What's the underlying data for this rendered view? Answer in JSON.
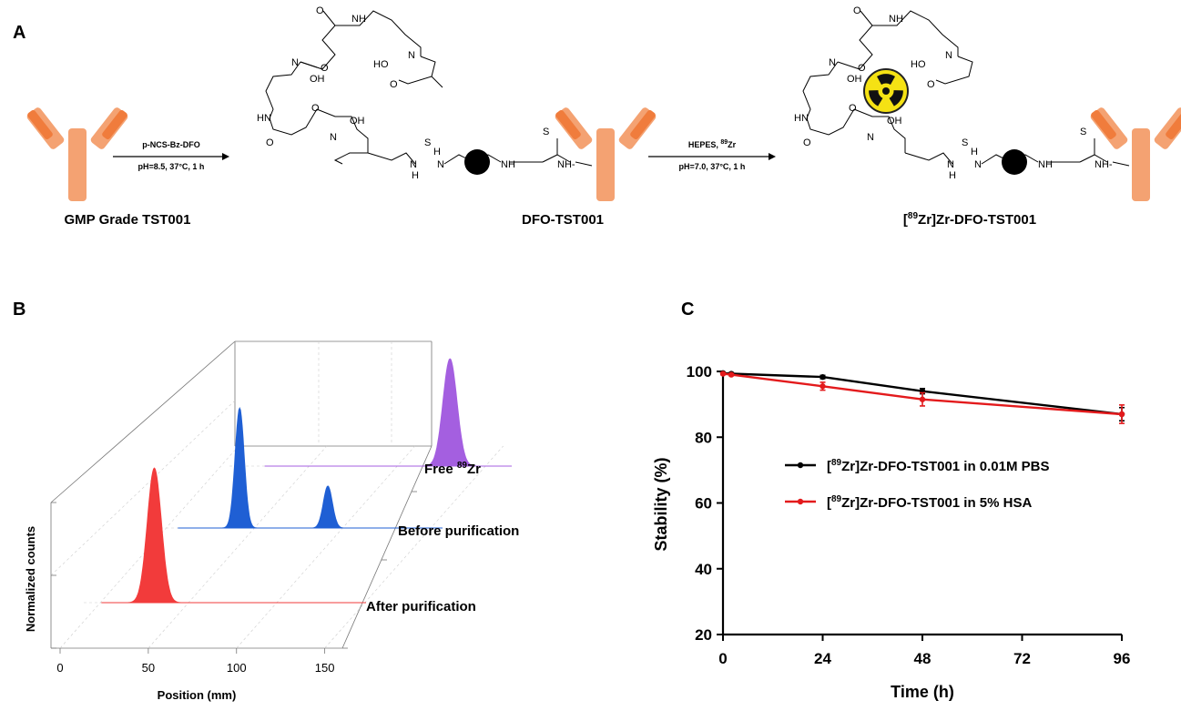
{
  "panels": {
    "a": "A",
    "b": "B",
    "c": "C"
  },
  "scheme": {
    "compounds": [
      {
        "prefix": "",
        "sup": "",
        "main": "GMP Grade TST001"
      },
      {
        "prefix": "",
        "sup": "",
        "main": "DFO-TST001"
      },
      {
        "prefix": "[",
        "sup": "89",
        "main": "Zr]Zr-DFO-TST001"
      }
    ],
    "step1": {
      "reagent": "p-NCS-Bz-DFO",
      "conditions": "pH=8.5, 37°C, 1 h"
    },
    "step2": {
      "reagent": "HEPES, ",
      "reagent_sup": "89",
      "reagent_tail": "Zr",
      "conditions": "pH=7.0, 37°C, 1 h"
    },
    "atom_labels": {
      "NH": "NH",
      "N": "N",
      "OH": "OH",
      "HO": "HO",
      "O": "O",
      "HN": "HN",
      "S": "S",
      "H": "H",
      "NHtail": "NH-"
    },
    "colors": {
      "antibody": "#f4a272",
      "antibody_dark": "#f07c3c",
      "hazard": "#f5e214"
    }
  },
  "chart_data": [
    {
      "type": "area",
      "panel": "B",
      "xlabel": "Position (mm)",
      "ylabel": "Normalized counts",
      "xticks": [
        "0",
        "50",
        "100",
        "150"
      ],
      "xlim": [
        0,
        160
      ],
      "grid": true,
      "style": "3d-waterfall",
      "traces": [
        {
          "prefix": "Free ",
          "sup": "89",
          "tail": "Zr",
          "color": "#a45fe0",
          "peaks": [
            {
              "center": 125,
              "height": 1.0,
              "width": 4.0
            }
          ]
        },
        {
          "prefix": "Before purification",
          "sup": "",
          "tail": "",
          "color": "#1f5fd4",
          "peaks": [
            {
              "center": 45,
              "height": 1.0,
              "width": 2.6
            },
            {
              "center": 95,
              "height": 0.35,
              "width": 2.6
            }
          ]
        },
        {
          "prefix": "After purification",
          "sup": "",
          "tail": "",
          "color": "#f23b3b",
          "peaks": [
            {
              "center": 40,
              "height": 1.0,
              "width": 4.0
            }
          ]
        }
      ]
    },
    {
      "type": "line",
      "panel": "C",
      "xlabel": "Time (h)",
      "ylabel": "Stability (%)",
      "xlim": [
        0,
        96
      ],
      "ylim": [
        20,
        100
      ],
      "xticks": [
        0,
        24,
        48,
        72,
        96
      ],
      "yticks": [
        20,
        40,
        60,
        80,
        100
      ],
      "legend_position": "center-left",
      "series": [
        {
          "label_prefix": "[",
          "label_sup": "89",
          "label_tail": "Zr]Zr-DFO-TST001 in 0.01M PBS",
          "color": "#000000",
          "x": [
            0,
            2,
            24,
            48,
            96
          ],
          "y": [
            99.5,
            99.3,
            98.3,
            94.0,
            87.0
          ],
          "err": [
            0.3,
            0.3,
            0.5,
            0.8,
            2.0
          ]
        },
        {
          "label_prefix": "[",
          "label_sup": "89",
          "label_tail": "Zr]Zr-DFO-TST001 in 5% HSA",
          "color": "#e31a1c",
          "x": [
            0,
            2,
            24,
            48,
            96
          ],
          "y": [
            99.3,
            99.0,
            95.5,
            91.5,
            87.0
          ],
          "err": [
            0.3,
            0.3,
            1.2,
            2.0,
            2.8
          ]
        }
      ]
    }
  ]
}
